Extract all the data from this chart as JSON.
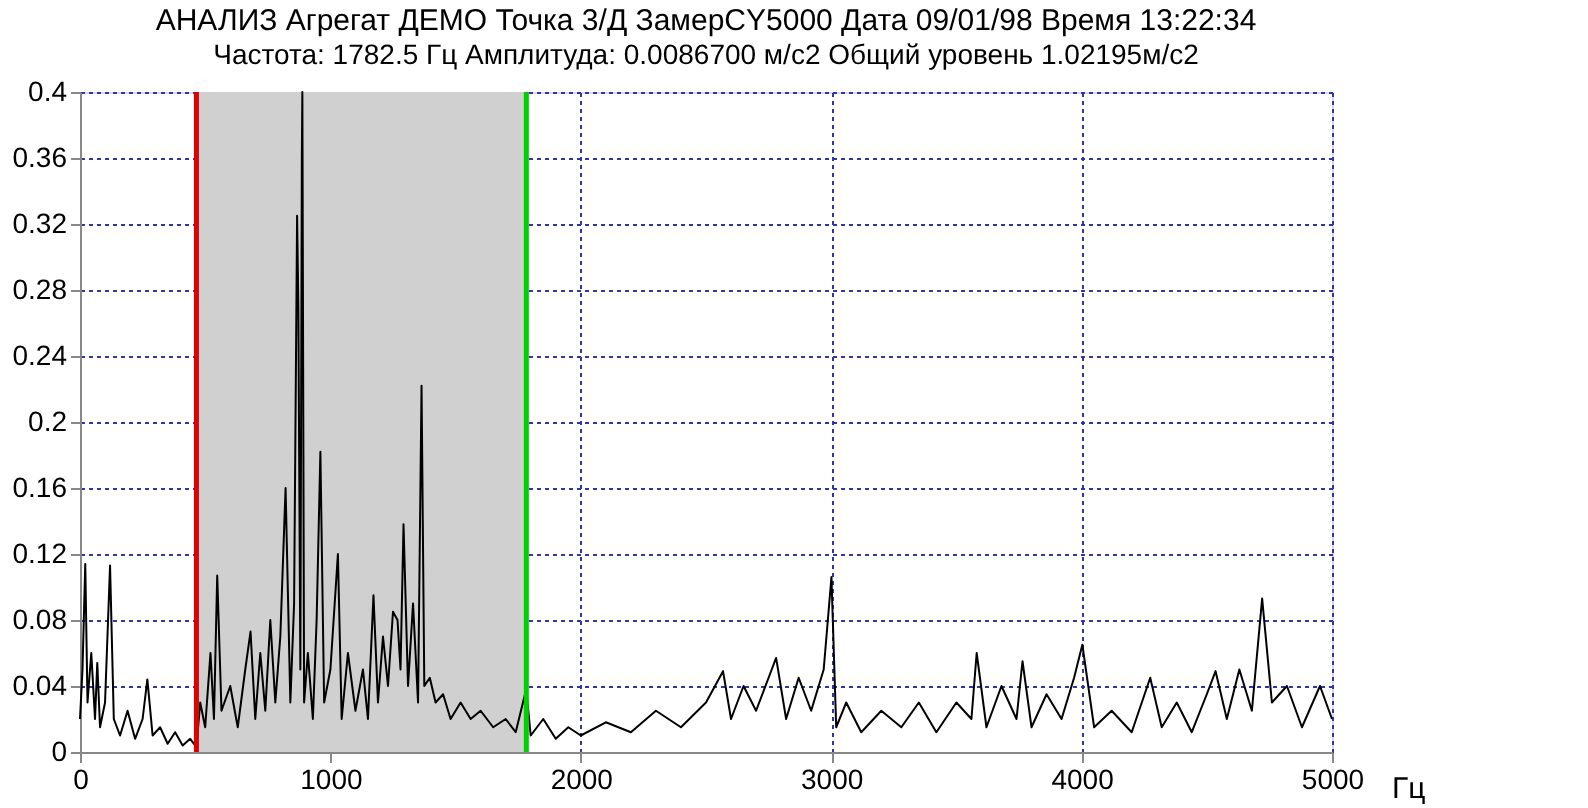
{
  "chart_data": {
    "type": "line",
    "title": "АНАЛИЗ Агрегат ДЕМО Точка 3/Д ЗамерCY5000 Дата 09/01/98 Время 13:22:34",
    "subtitle": "Частота: 1782.5 Гц Амплитуда: 0.0086700 м/с2 Общий уровень 1.02195м/с2",
    "xlabel": "Гц",
    "x": [
      0,
      10,
      21,
      30,
      45,
      60,
      69,
      80,
      100,
      120,
      135,
      160,
      190,
      220,
      250,
      269,
      290,
      320,
      350,
      380,
      410,
      440,
      465,
      480,
      500,
      521,
      535,
      548,
      565,
      600,
      630,
      660,
      681,
      700,
      720,
      740,
      760,
      780,
      800,
      821,
      840,
      855,
      867,
      872,
      880,
      886,
      888,
      895,
      910,
      930,
      945,
      960,
      975,
      1000,
      1030,
      1045,
      1070,
      1100,
      1130,
      1150,
      1172,
      1190,
      1210,
      1230,
      1250,
      1268,
      1280,
      1292,
      1310,
      1330,
      1350,
      1364,
      1375,
      1397,
      1420,
      1450,
      1480,
      1520,
      1560,
      1600,
      1650,
      1700,
      1740,
      1782,
      1800,
      1850,
      1900,
      1950,
      2000,
      2100,
      2200,
      2300,
      2400,
      2500,
      2568,
      2600,
      2650,
      2700,
      2750,
      2780,
      2820,
      2870,
      2920,
      2970,
      3001,
      3020,
      3060,
      3120,
      3200,
      3280,
      3350,
      3420,
      3500,
      3560,
      3581,
      3620,
      3680,
      3740,
      3764,
      3800,
      3860,
      3920,
      3970,
      4003,
      4050,
      4120,
      4200,
      4274,
      4320,
      4380,
      4440,
      4500,
      4535,
      4580,
      4630,
      4680,
      4721,
      4760,
      4820,
      4880,
      4952,
      5000
    ],
    "series": [
      {
        "color": "#000000",
        "values": [
          0.02,
          0.05,
          0.114,
          0.03,
          0.06,
          0.02,
          0.054,
          0.015,
          0.03,
          0.113,
          0.02,
          0.01,
          0.025,
          0.008,
          0.02,
          0.044,
          0.01,
          0.015,
          0.005,
          0.012,
          0.004,
          0.008,
          0.003,
          0.03,
          0.015,
          0.06,
          0.02,
          0.107,
          0.025,
          0.04,
          0.015,
          0.05,
          0.073,
          0.02,
          0.06,
          0.025,
          0.08,
          0.03,
          0.07,
          0.16,
          0.03,
          0.09,
          0.325,
          0.27,
          0.05,
          0.361,
          0.4,
          0.03,
          0.06,
          0.02,
          0.08,
          0.182,
          0.03,
          0.05,
          0.12,
          0.02,
          0.06,
          0.025,
          0.05,
          0.02,
          0.095,
          0.03,
          0.07,
          0.04,
          0.085,
          0.08,
          0.05,
          0.138,
          0.04,
          0.09,
          0.03,
          0.222,
          0.04,
          0.045,
          0.03,
          0.035,
          0.02,
          0.03,
          0.02,
          0.025,
          0.015,
          0.02,
          0.012,
          0.038,
          0.01,
          0.02,
          0.008,
          0.015,
          0.01,
          0.018,
          0.012,
          0.025,
          0.015,
          0.03,
          0.049,
          0.02,
          0.04,
          0.025,
          0.045,
          0.057,
          0.02,
          0.045,
          0.025,
          0.05,
          0.106,
          0.015,
          0.03,
          0.012,
          0.025,
          0.015,
          0.03,
          0.012,
          0.03,
          0.02,
          0.06,
          0.015,
          0.04,
          0.02,
          0.055,
          0.015,
          0.035,
          0.02,
          0.045,
          0.065,
          0.015,
          0.025,
          0.012,
          0.045,
          0.015,
          0.03,
          0.012,
          0.035,
          0.049,
          0.02,
          0.05,
          0.025,
          0.093,
          0.03,
          0.04,
          0.015,
          0.04,
          0.02
        ]
      }
    ],
    "xlim": [
      0,
      5000
    ],
    "xticks": [
      0,
      1000,
      2000,
      3000,
      4000,
      5000
    ],
    "ylim": [
      0,
      0.4
    ],
    "yticks": [
      0,
      0.04,
      0.08,
      0.12,
      0.16,
      0.2,
      0.24,
      0.28,
      0.32,
      0.36,
      0.4
    ],
    "grid": true,
    "marker": "none",
    "line_style": "solid",
    "ref_lines": [
      {
        "axis": "x",
        "value": 465,
        "color": "#e00000"
      },
      {
        "axis": "x",
        "value": 1782.5,
        "color": "#00d000"
      }
    ],
    "bands": [
      {
        "axis": "x",
        "from": 465,
        "to": 1782.5,
        "color": "#d0d0d0"
      }
    ]
  }
}
